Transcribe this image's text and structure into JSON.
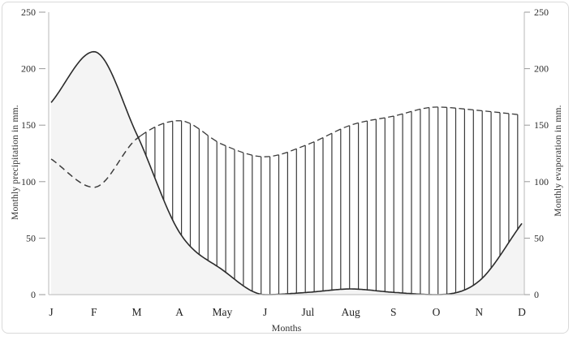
{
  "chart_data": {
    "type": "line",
    "title": "",
    "categories": [
      "J",
      "F",
      "M",
      "A",
      "May",
      "J",
      "Jul",
      "Aug",
      "S",
      "O",
      "N",
      "D"
    ],
    "x_axis_label": "Months",
    "y_axis_left_label": "Monthly precipitation in mm.",
    "y_axis_right_label": "Monthly evaporation in mm.",
    "ylim": [
      0,
      250
    ],
    "yticks_left": [
      "0",
      "50",
      "100",
      "150",
      "200",
      "250"
    ],
    "yticks_right": [
      "0",
      "50",
      "100",
      "150",
      "200",
      "250"
    ],
    "series": [
      {
        "name": "precipitation",
        "line_style": "solid",
        "area_fill": "#f4f4f4",
        "values": [
          170,
          215,
          142,
          55,
          22,
          0,
          2,
          5,
          2,
          0,
          12,
          63
        ]
      },
      {
        "name": "evaporation",
        "line_style": "dashed",
        "values": [
          120,
          95,
          138,
          154,
          133,
          122,
          133,
          150,
          158,
          166,
          163,
          159
        ]
      }
    ],
    "deficit_hatch": {
      "style": "vertical-lines",
      "note": "vertical hatching fills the region where evaporation exceeds precipitation (from the curve crossing near M through D)"
    },
    "legend": "none",
    "grid": "off",
    "colors": {
      "line": "#2b2b2b",
      "dashed_line": "#3c3c3c",
      "hatch": "#3a3a3a",
      "axis": "#c5c5c5",
      "tick": "#9a9a9a",
      "area_fill": "#f4f4f4",
      "text": "#2e2e2e",
      "frame_border": "#d9d9d9"
    }
  }
}
